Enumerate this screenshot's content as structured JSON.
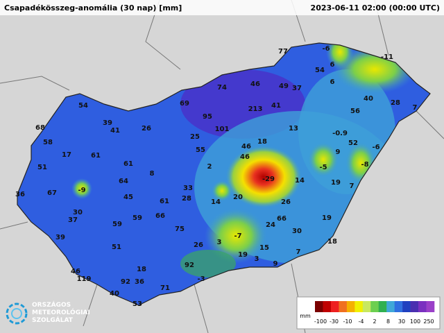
{
  "header": {
    "title": "Csapadékösszeg-anomália (30 nap) [mm]",
    "time": "2023-06-11 02:00 (00:00 UTC)"
  },
  "stations": [
    77,
    -6,
    -11,
    74,
    46,
    49,
    37,
    54,
    6,
    6,
    40,
    28,
    7,
    54,
    69,
    95,
    213,
    41,
    56,
    68,
    39,
    41,
    26,
    101,
    13,
    -0.9,
    58,
    25,
    18,
    52,
    -6,
    17,
    61,
    55,
    46,
    9,
    51,
    61,
    2,
    46,
    -5,
    -8,
    8,
    -29,
    14,
    64,
    19,
    7,
    -9,
    67,
    33,
    36,
    45,
    20,
    28,
    14,
    61,
    26,
    30,
    37,
    59,
    66,
    66,
    19,
    59,
    75,
    24,
    30,
    39,
    -7,
    3,
    51,
    26,
    15,
    18,
    19,
    7,
    3,
    18,
    92,
    9,
    46,
    119,
    92,
    36,
    -3,
    71,
    40,
    53
  ],
  "legend": {
    "unit": "mm",
    "labels": [
      -100,
      -30,
      -10,
      -4,
      2,
      8,
      30,
      100,
      250
    ]
  },
  "logo": {
    "lines": [
      "ORSZÁGOS",
      "METEOROLÓGIAI",
      "SZOLGÁLAT"
    ]
  }
}
